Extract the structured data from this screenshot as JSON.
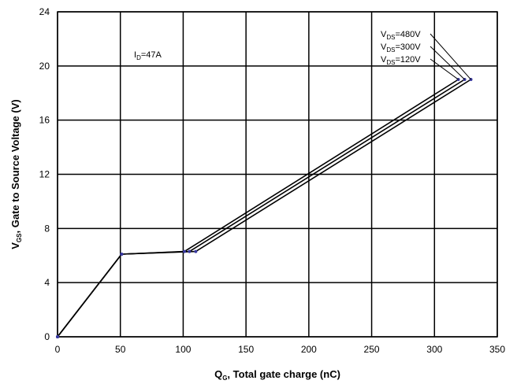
{
  "chart_data": {
    "type": "line",
    "xlabel_main": "Q",
    "xlabel_sub": "G",
    "xlabel_rest": ", Total gate charge (nC)",
    "ylabel_main": "V",
    "ylabel_sub": "GS",
    "ylabel_rest": ", Gate to Source Voltage (V)",
    "xlim": [
      0,
      350
    ],
    "ylim": [
      0,
      24
    ],
    "xticks": [
      0,
      50,
      100,
      150,
      200,
      250,
      300,
      350
    ],
    "yticks": [
      0,
      4,
      8,
      12,
      16,
      20,
      24
    ],
    "grid": true,
    "annotations": {
      "current": {
        "main": "I",
        "sub": "D",
        "rest": "=47A"
      }
    },
    "series": [
      {
        "name_main": "V",
        "name_sub": "DS",
        "name_rest": "=480V",
        "x": [
          0,
          51,
          110,
          329
        ],
        "y": [
          0,
          6.1,
          6.3,
          19.0
        ]
      },
      {
        "name_main": "V",
        "name_sub": "DS",
        "name_rest": "=300V",
        "x": [
          0,
          51,
          105,
          324
        ],
        "y": [
          0,
          6.1,
          6.3,
          19.0
        ]
      },
      {
        "name_main": "V",
        "name_sub": "DS",
        "name_rest": "=120V",
        "x": [
          0,
          51,
          101,
          319
        ],
        "y": [
          0,
          6.1,
          6.3,
          19.0
        ]
      }
    ]
  }
}
